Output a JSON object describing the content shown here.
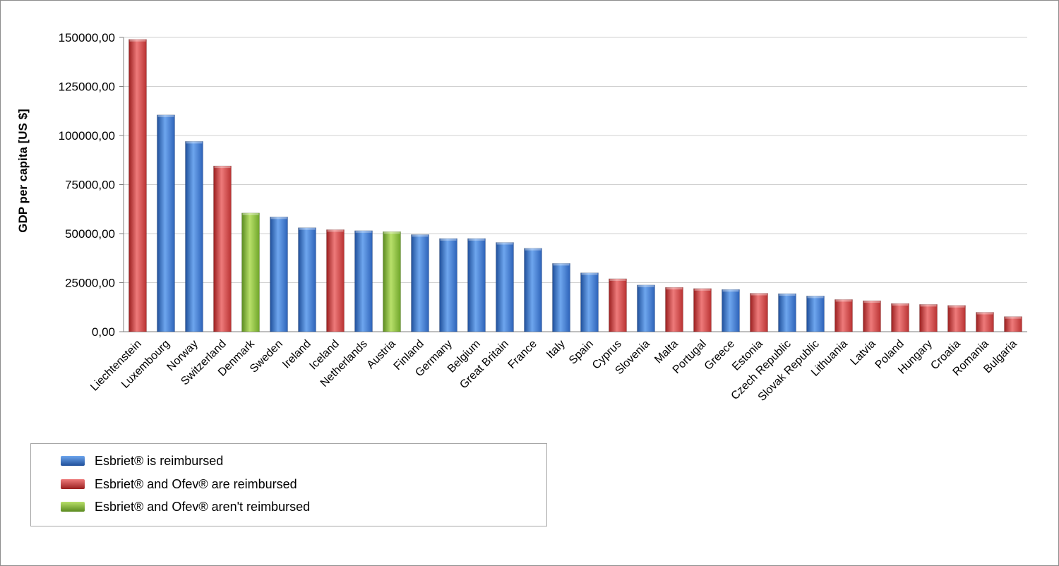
{
  "chart_data": {
    "type": "bar",
    "title": "",
    "xlabel": "",
    "ylabel": "GDP per capita [US $]",
    "ylim": [
      0,
      150000
    ],
    "yticks": [
      0,
      25000,
      50000,
      75000,
      100000,
      125000,
      150000
    ],
    "ytick_labels": [
      "0,00",
      "25000,00",
      "50000,00",
      "75000,00",
      "100000,00",
      "125000,00",
      "150000,00"
    ],
    "grid": "horizontal",
    "legend_position": "bottom-left",
    "categories": [
      "Liechtenstein",
      "Luxembourg",
      "Norway",
      "Switzerland",
      "Denmark",
      "Sweden",
      "Ireland",
      "Iceland",
      "Netherlands",
      "Austria",
      "Finland",
      "Germany",
      "Belgium",
      "Great Britain",
      "France",
      "Italy",
      "Spain",
      "Cyprus",
      "Slovenia",
      "Malta",
      "Portugal",
      "Greece",
      "Estonia",
      "Czech Republic",
      "Slovak Republic",
      "Lithuania",
      "Latvia",
      "Poland",
      "Hungary",
      "Croatia",
      "Romania",
      "Bulgaria"
    ],
    "values": [
      149000,
      110500,
      97000,
      84500,
      60500,
      58500,
      53000,
      52000,
      51500,
      51000,
      49500,
      47500,
      47500,
      45500,
      42500,
      34800,
      30000,
      27000,
      23800,
      22600,
      22000,
      21500,
      19600,
      19400,
      18200,
      16400,
      15800,
      14400,
      13900,
      13400,
      9900,
      7700
    ],
    "groups": [
      "Ofev",
      "Esbriet",
      "Esbriet",
      "Ofev",
      "None",
      "Esbriet",
      "Esbriet",
      "Ofev",
      "Esbriet",
      "None",
      "Esbriet",
      "Esbriet",
      "Esbriet",
      "Esbriet",
      "Esbriet",
      "Esbriet",
      "Esbriet",
      "Ofev",
      "Esbriet",
      "Ofev",
      "Ofev",
      "Esbriet",
      "Ofev",
      "Esbriet",
      "Esbriet",
      "Ofev",
      "Ofev",
      "Ofev",
      "Ofev",
      "Ofev",
      "Ofev",
      "Ofev"
    ],
    "legend": [
      {
        "key": "Esbriet",
        "label": "Esbriet® is reimbursed",
        "color": "#3f7fd4"
      },
      {
        "key": "Ofev",
        "label": "Esbriet® and Ofev® are reimbursed",
        "color": "#d94747"
      },
      {
        "key": "None",
        "label": "Esbriet® and Ofev® aren't reimbursed",
        "color": "#8dc63f"
      }
    ]
  }
}
